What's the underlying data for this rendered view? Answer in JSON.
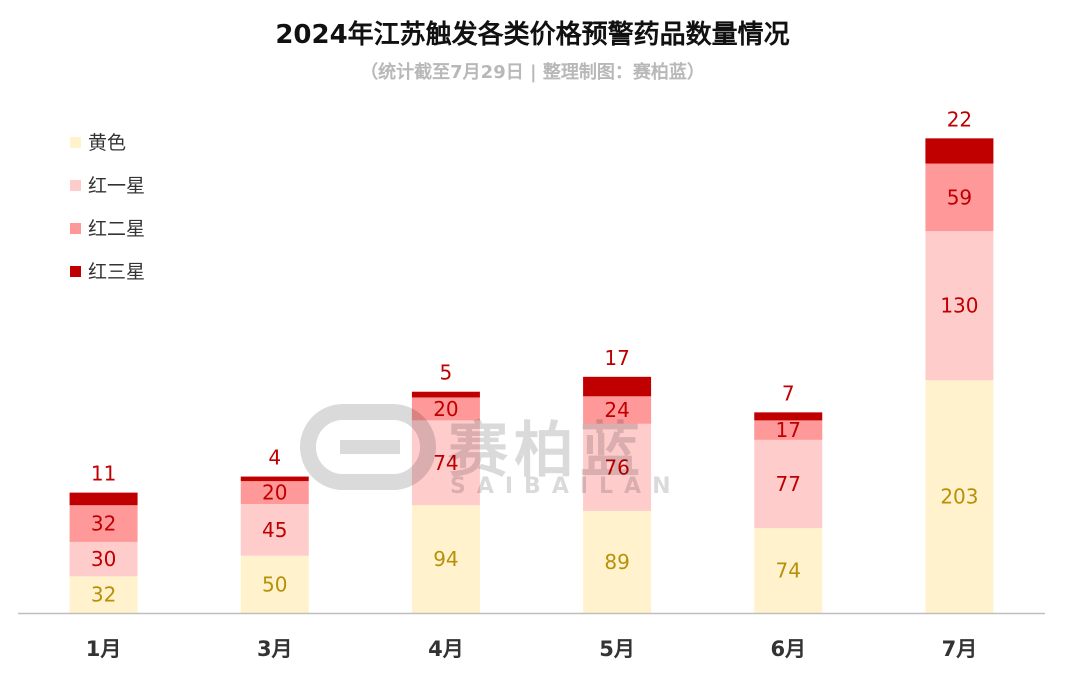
{
  "chart_data": {
    "type": "bar",
    "stacked": true,
    "title": "2024年江苏触发各类价格预警药品数量情况",
    "subtitle": "（统计截至7月29日 | 整理制图：赛柏蓝）",
    "categories": [
      "1月",
      "3月",
      "4月",
      "5月",
      "6月",
      "7月"
    ],
    "series": [
      {
        "name": "黄色",
        "values": [
          32,
          50,
          94,
          89,
          74,
          203
        ],
        "color": "#fff2cc",
        "label_color": "#b8900a"
      },
      {
        "name": "红一星",
        "values": [
          30,
          45,
          74,
          76,
          77,
          130
        ],
        "color": "#ffcccc",
        "label_color": "#c00000"
      },
      {
        "name": "红二星",
        "values": [
          32,
          20,
          20,
          24,
          17,
          59
        ],
        "color": "#ff9999",
        "label_color": "#c00000"
      },
      {
        "name": "红三星",
        "values": [
          11,
          4,
          5,
          17,
          7,
          22
        ],
        "color": "#c00000",
        "label_color": "#c00000"
      }
    ],
    "ylim": [
      0,
      430
    ],
    "grid": false,
    "legend": "top-left"
  },
  "watermark": {
    "text": "赛柏蓝",
    "subtext": "SAIBAILAN"
  }
}
